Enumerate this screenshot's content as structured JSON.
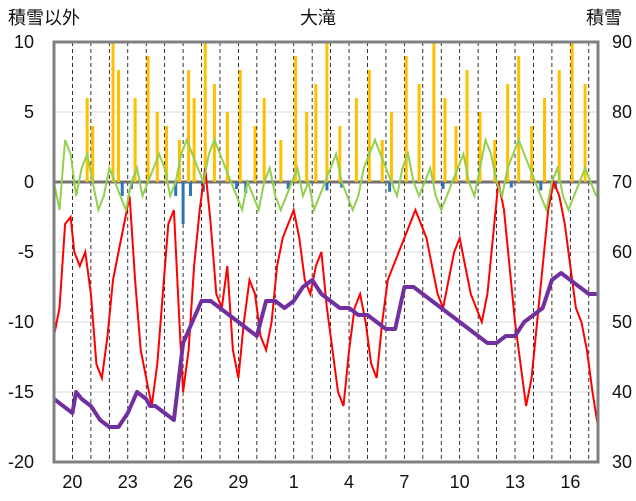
{
  "chart_data": {
    "type": "line",
    "title": "大滝",
    "left_axis_label": "積雪以外",
    "right_axis_label": "積雪",
    "left_ylim": [
      -20,
      10
    ],
    "left_yticks": [
      10,
      5,
      0,
      -5,
      -10,
      -15,
      -20
    ],
    "right_ylim": [
      30,
      90
    ],
    "right_yticks": [
      90,
      80,
      70,
      60,
      50,
      40,
      30
    ],
    "x_ticks": [
      "20",
      "23",
      "26",
      "29",
      "1",
      "4",
      "7",
      "10",
      "13",
      "16"
    ],
    "x_tick_days": [
      1,
      4,
      7,
      10,
      13,
      16,
      19,
      22,
      25,
      28
    ],
    "x_range_days": [
      0,
      29.5
    ],
    "grid_vertical": "dashed daily",
    "grid_horizontal": true,
    "colors": {
      "temperature": "#ff0000",
      "sunshine_like": "#92d050",
      "precipitation": "#ffc000",
      "negative_bars": "#2e75b6",
      "snow_depth": "#7030a0",
      "zero_line": "#767171",
      "frame": "#808080"
    },
    "series": [
      {
        "key": "temperature",
        "axis": "left",
        "values_x": [
          0,
          0.3,
          0.6,
          0.9,
          1.1,
          1.4,
          1.7,
          2,
          2.3,
          2.6,
          2.9,
          3.2,
          3.5,
          3.8,
          4.1,
          4.4,
          4.7,
          5,
          5.3,
          5.6,
          5.9,
          6.2,
          6.5,
          6.8,
          7,
          7.3,
          7.6,
          7.9,
          8.2,
          8.5,
          8.8,
          9.1,
          9.4,
          9.7,
          10,
          10.3,
          10.6,
          10.9,
          11.2,
          11.5,
          11.8,
          12.1,
          12.4,
          12.7,
          13,
          13.3,
          13.6,
          13.9,
          14.2,
          14.5,
          14.8,
          15.1,
          15.4,
          15.7,
          16,
          16.3,
          16.6,
          16.9,
          17.2,
          17.5,
          17.8,
          18.1,
          18.4,
          18.7,
          19,
          19.3,
          19.6,
          19.9,
          20.2,
          20.5,
          20.8,
          21.1,
          21.4,
          21.7,
          22,
          22.3,
          22.6,
          22.9,
          23.2,
          23.5,
          23.8,
          24.1,
          24.4,
          24.7,
          25,
          25.3,
          25.6,
          25.9,
          26.2,
          26.5,
          26.8,
          27.1,
          27.4,
          27.7,
          28,
          28.3,
          28.6,
          28.9,
          29.2,
          29.5
        ],
        "values_y": [
          -11,
          -9,
          -3,
          -2.5,
          -5,
          -6,
          -5,
          -8,
          -13,
          -14,
          -11,
          -7,
          -5,
          -3,
          -1,
          -7,
          -12,
          -14,
          -16,
          -13,
          -8,
          -3,
          -2,
          -10,
          -15,
          -12,
          -6,
          -2,
          1,
          -3,
          -8,
          -9,
          -6,
          -12,
          -14,
          -10,
          -7,
          -8,
          -11,
          -12,
          -10,
          -6,
          -4,
          -3,
          -2,
          -4,
          -7,
          -8,
          -6,
          -5,
          -9,
          -12,
          -15,
          -16,
          -12,
          -9,
          -8,
          -10,
          -13,
          -14,
          -10,
          -7,
          -6,
          -5,
          -4,
          -3,
          -2,
          -3,
          -4,
          -6,
          -8,
          -9,
          -7,
          -5,
          -4,
          -6,
          -8,
          -9,
          -10,
          -8,
          -4,
          0,
          -2,
          -6,
          -10,
          -13,
          -16,
          -14,
          -10,
          -6,
          -2,
          0,
          -1,
          -3,
          -6,
          -9,
          -10,
          -12,
          -15,
          -17.5
        ]
      },
      {
        "key": "sunshine_like",
        "axis": "left",
        "values_x": [
          0,
          0.3,
          0.6,
          0.9,
          1.2,
          1.5,
          1.8,
          2.1,
          2.4,
          2.7,
          3,
          3.3,
          3.6,
          3.9,
          4.2,
          4.5,
          4.8,
          5.1,
          5.4,
          5.7,
          6,
          6.3,
          6.6,
          6.9,
          7.2,
          7.5,
          7.8,
          8.1,
          8.4,
          8.7,
          9,
          9.3,
          9.6,
          9.9,
          10.2,
          10.5,
          10.8,
          11.1,
          11.4,
          11.7,
          12,
          12.3,
          12.6,
          12.9,
          13.2,
          13.5,
          13.8,
          14.1,
          14.4,
          14.7,
          15,
          15.3,
          15.6,
          15.9,
          16.2,
          16.5,
          16.8,
          17.1,
          17.4,
          17.7,
          18,
          18.3,
          18.6,
          18.9,
          19.2,
          19.5,
          19.8,
          20.1,
          20.4,
          20.7,
          21,
          21.3,
          21.6,
          21.9,
          22.2,
          22.5,
          22.8,
          23.1,
          23.4,
          23.7,
          24,
          24.3,
          24.6,
          24.9,
          25.2,
          25.5,
          25.8,
          26.1,
          26.4,
          26.7,
          27,
          27.3,
          27.6,
          27.9,
          28.2,
          28.5,
          28.8,
          29.1,
          29.4
        ],
        "values_y": [
          0,
          -2,
          3,
          2,
          -1,
          1,
          2,
          0,
          -2,
          -1,
          1,
          0,
          -1,
          -2,
          0,
          1,
          -1,
          0,
          1,
          2,
          1,
          -1,
          0,
          2,
          3,
          2,
          1,
          0,
          2,
          3,
          2,
          1,
          0,
          -1,
          -2,
          0,
          -1,
          -2,
          0,
          1,
          -1,
          -2,
          -1,
          0,
          1,
          -1,
          0,
          -2,
          -1,
          0,
          1,
          2,
          0,
          -1,
          -2,
          -1,
          1,
          2,
          3,
          2,
          1,
          0,
          -1,
          1,
          2,
          0,
          -1,
          0,
          1,
          -1,
          -2,
          -1,
          0,
          1,
          2,
          0,
          -1,
          1,
          3,
          2,
          0,
          -1,
          1,
          2,
          3,
          2,
          1,
          0,
          -1,
          -2,
          0,
          1,
          -1,
          -2,
          -1,
          0,
          1,
          0,
          -1
        ]
      },
      {
        "key": "snow_depth",
        "axis": "right",
        "values_x": [
          0,
          0.5,
          1,
          1.2,
          1.5,
          2,
          2.5,
          3,
          3.5,
          4,
          4.5,
          5,
          5.2,
          5.5,
          6,
          6.5,
          7,
          7.5,
          8,
          8.5,
          9,
          9.5,
          10,
          10.5,
          11,
          11.5,
          12,
          12.5,
          13,
          13.5,
          14,
          14.5,
          15,
          15.5,
          16,
          16.5,
          17,
          17.5,
          18,
          18.5,
          19,
          19.5,
          20,
          20.5,
          21,
          21.5,
          22,
          22.5,
          23,
          23.5,
          24,
          24.5,
          25,
          25.5,
          26,
          26.5,
          27,
          27.5,
          28,
          28.5,
          29,
          29.5
        ],
        "values_y": [
          39,
          38,
          37,
          40,
          39,
          38,
          36,
          35,
          35,
          37,
          40,
          39,
          38,
          38,
          37,
          36,
          47,
          50,
          53,
          53,
          52,
          51,
          50,
          49,
          48,
          53,
          53,
          52,
          53,
          55,
          56,
          54,
          53,
          52,
          52,
          51,
          51,
          50,
          49,
          49,
          55,
          55,
          54,
          53,
          52,
          51,
          50,
          49,
          48,
          47,
          47,
          48,
          48,
          50,
          51,
          52,
          56,
          57,
          56,
          55,
          54,
          54
        ]
      }
    ],
    "bars": {
      "key": "precipitation",
      "axis": "left",
      "x": [
        1.8,
        2.1,
        3.2,
        3.5,
        4.4,
        5.1,
        5.6,
        6.1,
        6.8,
        7.3,
        7.6,
        8.2,
        8.7,
        9.4,
        10.1,
        10.9,
        11.4,
        12.3,
        13.1,
        13.7,
        14.2,
        14.8,
        15.5,
        16.4,
        17.1,
        17.8,
        18.3,
        19.1,
        19.8,
        20.6,
        21.2,
        21.8,
        22.4,
        23.1,
        23.9,
        24.6,
        25.2,
        25.9,
        26.6,
        27.4,
        28.1,
        28.8
      ],
      "y": [
        6,
        4,
        10,
        8,
        6,
        9,
        5,
        4,
        3,
        8,
        6,
        10,
        7,
        5,
        8,
        4,
        6,
        3,
        9,
        5,
        7,
        10,
        4,
        6,
        8,
        3,
        5,
        9,
        7,
        10,
        6,
        4,
        8,
        5,
        3,
        7,
        9,
        4,
        6,
        8,
        10,
        7
      ]
    },
    "negative_bars": {
      "key": "negative_bars",
      "axis": "left",
      "x": [
        3.7,
        4.2,
        6.6,
        7.0,
        7.4,
        8.1,
        9.9,
        10.4,
        12.7,
        14.8,
        15.6,
        18.2,
        21.1,
        24.8,
        26.4,
        27.2
      ],
      "y": [
        -1,
        -0.5,
        -1,
        -3,
        -1,
        -0.7,
        -0.5,
        -0.8,
        -0.5,
        -0.6,
        -0.4,
        -0.7,
        -0.5,
        -0.4,
        -0.6,
        -0.5
      ]
    }
  }
}
